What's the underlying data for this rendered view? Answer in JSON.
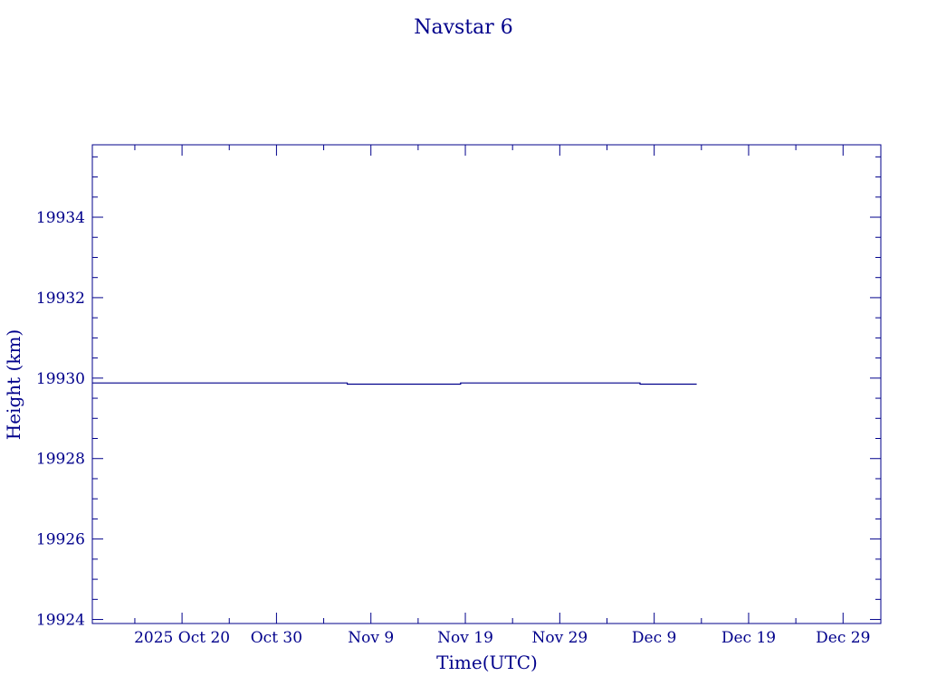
{
  "chart_data": {
    "type": "line",
    "title": "Navstar 6",
    "xlabel": "Time(UTC)",
    "ylabel": "Height (km)",
    "x_tick_labels": [
      "2025 Oct 20",
      "Oct 30",
      "Nov  9",
      "Nov 19",
      "Nov 29",
      "Dec  9",
      "Dec 19",
      "Dec 29"
    ],
    "x_ticks": [
      "2025-10-20",
      "2025-10-30",
      "2025-11-09",
      "2025-11-19",
      "2025-11-29",
      "2025-12-09",
      "2025-12-19",
      "2025-12-29"
    ],
    "xlim": [
      "2025-10-10T12:00",
      "2026-01-02T00:00"
    ],
    "y_ticks": [
      19924,
      19926,
      19928,
      19930,
      19932,
      19934
    ],
    "ylim": [
      19923.9,
      19935.8
    ],
    "grid": false,
    "colors": {
      "axis": "#00008b",
      "text": "#00008b",
      "series": "#00008b"
    },
    "series": [
      {
        "x": [
          "2025-10-10T12:00",
          "2025-11-06T12:00",
          "2025-11-06T12:00",
          "2025-11-18T12:00",
          "2025-11-18T12:00",
          "2025-12-07T12:00",
          "2025-12-07T12:00",
          "2025-12-13T12:00"
        ],
        "y": [
          19929.88,
          19929.88,
          19929.85,
          19929.85,
          19929.88,
          19929.88,
          19929.85,
          19929.85
        ]
      }
    ]
  }
}
